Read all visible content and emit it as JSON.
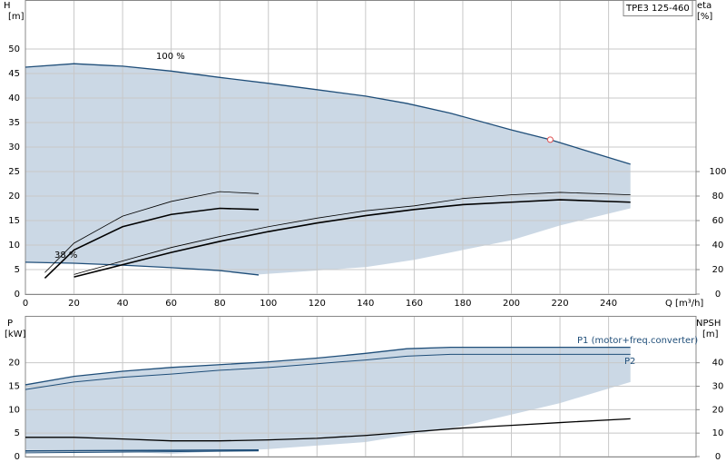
{
  "chart_data": [
    {
      "type": "line",
      "y_label": "H",
      "y_unit": "[m]",
      "y2_label": "eta",
      "y2_unit": "[%]",
      "x_label": "Q [m³/h]",
      "title": "TPE3 125-460",
      "xlim": [
        0,
        276
      ],
      "xticks": [
        0,
        20,
        40,
        60,
        80,
        100,
        120,
        140,
        160,
        180,
        200,
        220,
        240
      ],
      "show_xtick_labels": true,
      "ylim": [
        0,
        60
      ],
      "yticks": [
        0,
        5,
        10,
        15,
        20,
        25,
        30,
        35,
        40,
        45,
        50
      ],
      "y2lim": [
        0,
        240
      ],
      "y2ticks": [
        0,
        20,
        40,
        60,
        80,
        100
      ],
      "grid": true,
      "annotations": [
        "100 %",
        "38 %"
      ],
      "band": {
        "color": "#cbd8e5",
        "x": [
          96,
          140,
          160,
          180,
          200,
          220,
          249
        ],
        "values": [
          4,
          5.5,
          7,
          9,
          11,
          14,
          17.5
        ]
      },
      "series": [
        {
          "color": "#1f4e79",
          "width": 1.3,
          "x": [
            0,
            20,
            40,
            60,
            80,
            100,
            120,
            140,
            157,
            175,
            200,
            216,
            249
          ],
          "values": [
            46.3,
            47,
            46.5,
            45.5,
            44.2,
            43,
            41.7,
            40.4,
            38.9,
            36.9,
            33.5,
            31.5,
            26.5
          ]
        },
        {
          "color": "#1f4e79",
          "width": 1.3,
          "x": [
            0,
            20,
            40,
            60,
            80,
            96
          ],
          "values": [
            6.5,
            6.3,
            5.9,
            5.4,
            4.8,
            3.9
          ]
        },
        {
          "color": "#000",
          "width": 0.8,
          "axis": "y2",
          "x": [
            8,
            20,
            40,
            60,
            80,
            96
          ],
          "values": [
            17.6,
            41.6,
            63.6,
            75.6,
            83.6,
            82
          ]
        },
        {
          "color": "#000",
          "width": 1.6,
          "axis": "y2",
          "x": [
            8,
            20,
            40,
            60,
            80,
            96
          ],
          "values": [
            13,
            36,
            55,
            65,
            70,
            69
          ]
        },
        {
          "color": "#000",
          "width": 0.8,
          "axis": "y2",
          "x": [
            20,
            40,
            60,
            80,
            100,
            120,
            140,
            160,
            180,
            200,
            220,
            249
          ],
          "values": [
            16,
            27,
            38,
            47,
            55,
            62,
            68,
            72,
            78,
            81,
            83,
            81
          ]
        },
        {
          "color": "#000",
          "width": 1.6,
          "axis": "y2",
          "x": [
            20,
            40,
            60,
            80,
            100,
            120,
            140,
            160,
            180,
            200,
            220,
            249
          ],
          "values": [
            14,
            24,
            34,
            43,
            51,
            58,
            64,
            69,
            73,
            75,
            77,
            75
          ]
        }
      ],
      "point": {
        "x": 216,
        "value": 31.5,
        "color": "#e05050"
      }
    },
    {
      "type": "line",
      "y_label": "P",
      "y_unit": "[kW]",
      "y2_label": "NPSH",
      "y2_unit": "[m]",
      "xlim": [
        0,
        276
      ],
      "xticks": [
        0,
        20,
        40,
        60,
        80,
        100,
        120,
        140,
        160,
        180,
        200,
        220,
        240
      ],
      "show_xtick_labels": false,
      "ylim": [
        0,
        30
      ],
      "yticks": [
        0,
        5,
        10,
        15,
        20
      ],
      "y2lim": [
        0,
        60
      ],
      "y2ticks": [
        0,
        10,
        20,
        30,
        40
      ],
      "grid": true,
      "annotations": [
        "P1 (motor+freq.converter)",
        "P2"
      ],
      "band": {
        "color": "#cbd8e5",
        "x": [
          0,
          20,
          60,
          100,
          140,
          180,
          220,
          249
        ],
        "values": [
          1.4,
          1.4,
          0.6,
          1.6,
          3.1,
          6.5,
          11.4,
          15.9
        ]
      },
      "series": [
        {
          "color": "#1f4e79",
          "width": 1.3,
          "x": [
            0,
            20,
            40,
            60,
            80,
            100,
            120,
            140,
            157,
            175,
            200,
            249
          ],
          "values": [
            15.3,
            17.1,
            18.2,
            19,
            19.6,
            20.2,
            21,
            22,
            23,
            23.3,
            23.3,
            23.3
          ]
        },
        {
          "color": "#1f4e79",
          "width": 1,
          "x": [
            0,
            20,
            40,
            60,
            80,
            100,
            120,
            140,
            157,
            175,
            200,
            249
          ],
          "values": [
            14.3,
            15.9,
            16.9,
            17.6,
            18.4,
            19,
            19.8,
            20.6,
            21.4,
            21.8,
            21.8,
            21.8
          ]
        },
        {
          "color": "#1f4e79",
          "width": 1.6,
          "x": [
            0,
            96
          ],
          "values": [
            1.2,
            1.4
          ]
        },
        {
          "color": "#1f4e79",
          "width": 1,
          "x": [
            0,
            96
          ],
          "values": [
            0.8,
            1.2
          ]
        },
        {
          "color": "#000",
          "width": 1.3,
          "axis": "y2",
          "x": [
            0,
            20,
            40,
            60,
            80,
            100,
            120,
            140,
            160,
            180,
            200,
            220,
            249
          ],
          "values": [
            8.2,
            8.2,
            7.5,
            6.7,
            6.7,
            7.1,
            7.8,
            9,
            10.6,
            12.2,
            13.3,
            14.5,
            16.1
          ]
        }
      ]
    }
  ]
}
